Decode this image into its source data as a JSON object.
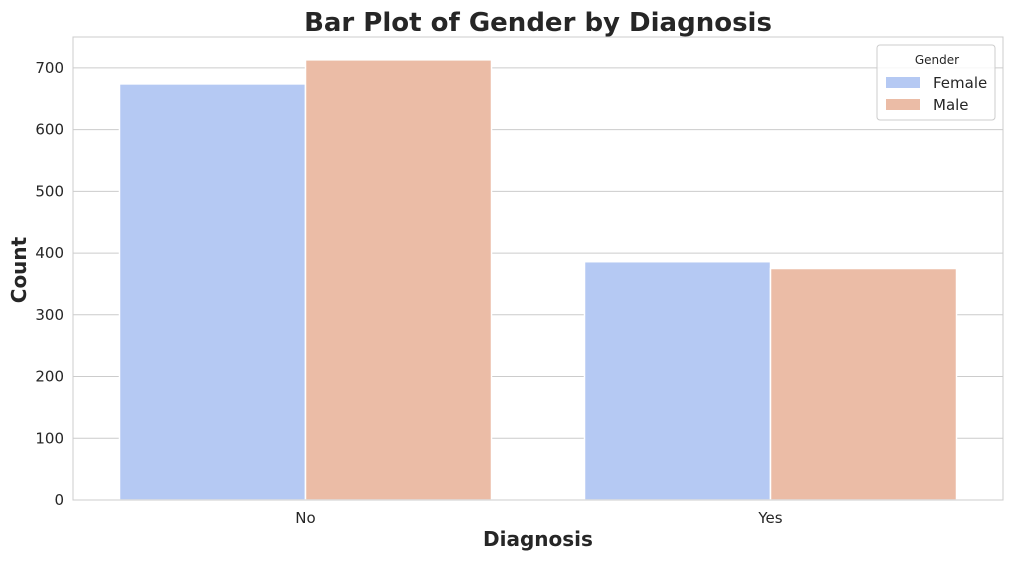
{
  "chart_data": {
    "type": "bar",
    "title": "Bar Plot of Gender by Diagnosis",
    "xlabel": "Diagnosis",
    "ylabel": "Count",
    "categories": [
      "No",
      "Yes"
    ],
    "series": [
      {
        "name": "Female",
        "color": "#b5c9f3",
        "values": [
          674,
          386
        ]
      },
      {
        "name": "Male",
        "color": "#ebbca6",
        "values": [
          713,
          375
        ]
      }
    ],
    "ylim": [
      0,
      750
    ],
    "yticks": [
      0,
      100,
      200,
      300,
      400,
      500,
      600,
      700
    ],
    "grid": true,
    "legend": {
      "title": "Gender",
      "position": "top-right"
    }
  }
}
